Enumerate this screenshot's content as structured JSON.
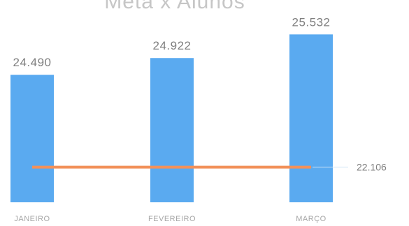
{
  "chart_data": {
    "type": "bar",
    "title": "Meta x Alunos",
    "categories": [
      "JANEIRO",
      "FEVEREIRO",
      "MARÇO"
    ],
    "series": [
      {
        "type": "bar",
        "values": [
          24490,
          24922,
          25532
        ],
        "labels": [
          "24.490",
          "24.922",
          "25.532"
        ]
      },
      {
        "type": "line",
        "values": [
          22106,
          22106,
          22106
        ],
        "labels": [
          "",
          "",
          "22.106"
        ]
      }
    ],
    "ylim": [
      21200,
      25700
    ],
    "grid": false,
    "colors": {
      "bar": "#5aaaf0",
      "line": "#f2915a",
      "label": "#7f7f7f",
      "axis_label": "#a6a6a6",
      "title": "#c6c6c6"
    }
  }
}
